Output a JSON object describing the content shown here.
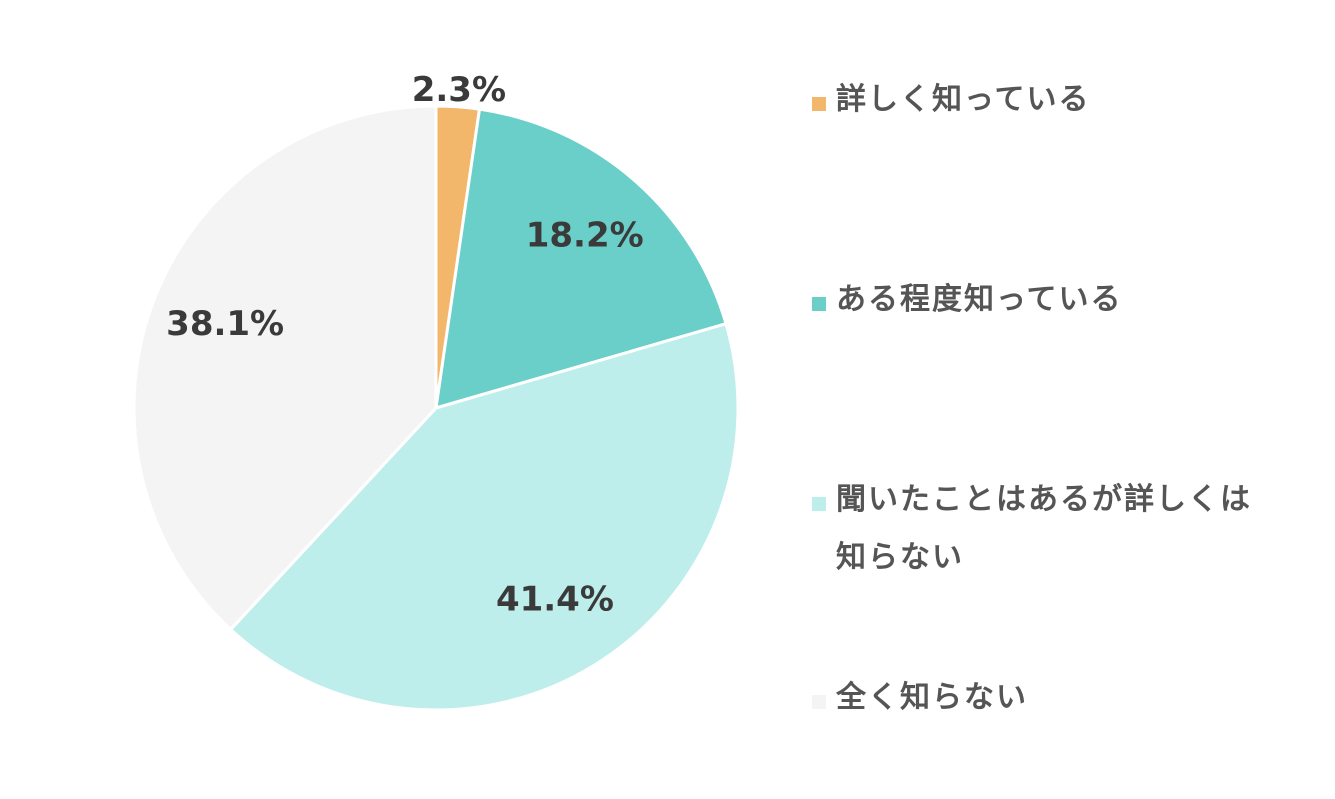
{
  "chart_data": {
    "type": "pie",
    "categories": [
      "詳しく知っている",
      "ある程度知っている",
      "聞いたことはあるが詳しくは知らない",
      "全く知らない"
    ],
    "values": [
      2.3,
      18.2,
      41.4,
      38.1
    ],
    "value_labels": [
      "2.3%",
      "18.2%",
      "41.4%",
      "38.1%"
    ],
    "colors": [
      "#f3b76b",
      "#6acfc9",
      "#bdeeeb",
      "#f4f4f4"
    ],
    "legend": "right"
  }
}
